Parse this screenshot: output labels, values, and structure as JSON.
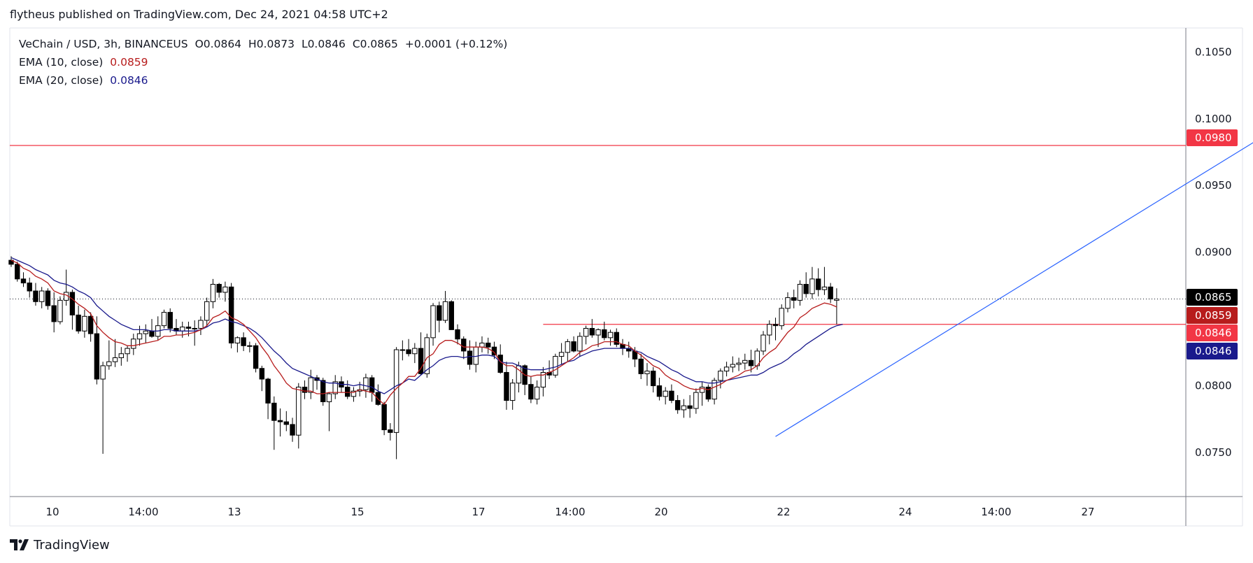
{
  "header": {
    "published_text": "flytheus published on TradingView.com, Dec 24, 2021 04:58 UTC+2"
  },
  "legend": {
    "symbol": "VeChain / USD, 3h, BINANCEUS",
    "open": "O0.0864",
    "high": "H0.0873",
    "low": "L0.0846",
    "close": "C0.0865",
    "change": "+0.0001 (+0.12%)",
    "ema10_label": "EMA (10, close)",
    "ema10_value": "0.0859",
    "ema20_label": "EMA (20, close)",
    "ema20_value": "0.0846"
  },
  "footer": {
    "brand": "TradingView"
  },
  "colors": {
    "up_body": "#ffffff",
    "down_body": "#000000",
    "ema10": "#b71c1c",
    "ema20": "#1a1a8c",
    "hline": "#f23645",
    "trendline": "#2962ff",
    "last_price_label": "#000000",
    "ema10_label_bg": "#b71c1c",
    "hline_label_bg": "#f23645",
    "ema20_label_bg": "#1a1a8c"
  },
  "chart_data": {
    "type": "candlestick",
    "timeframe": "3h",
    "y_axis": {
      "ticks": [
        "0.1050",
        "0.1000",
        "0.0950",
        "0.0900",
        "0.0800",
        "0.0750"
      ],
      "range": [
        0.0717,
        0.1068
      ]
    },
    "x_axis": {
      "tick_labels": [
        "10",
        "14:00",
        "13",
        "15",
        "17",
        "14:00",
        "20",
        "22",
        "24",
        "14:00",
        "27"
      ]
    },
    "price_labels": [
      {
        "value": "0.0980",
        "kind": "horizontal-line"
      },
      {
        "value": "0.0865",
        "kind": "last-price"
      },
      {
        "value": "0.0859",
        "kind": "ema10"
      },
      {
        "value": "0.0846",
        "kind": "horizontal-line"
      },
      {
        "value": "0.0846",
        "kind": "ema20"
      }
    ],
    "horizontal_lines": [
      {
        "price": 0.098,
        "from_bar": 0,
        "extend": "full"
      },
      {
        "price": 0.0846,
        "from_bar": 87,
        "extend": "right"
      }
    ],
    "trendline": {
      "bar1": 125,
      "price1": 0.0762,
      "bar2": 213,
      "price2": 0.101
    },
    "candles": [
      [
        0.0894,
        0.0897,
        0.0889,
        0.0891
      ],
      [
        0.0891,
        0.0893,
        0.0878,
        0.088
      ],
      [
        0.088,
        0.0885,
        0.0874,
        0.0877
      ],
      [
        0.0877,
        0.0881,
        0.0866,
        0.0871
      ],
      [
        0.0871,
        0.0877,
        0.086,
        0.0863
      ],
      [
        0.0863,
        0.0874,
        0.0858,
        0.0871
      ],
      [
        0.0871,
        0.0873,
        0.0857,
        0.086
      ],
      [
        0.086,
        0.087,
        0.084,
        0.0848
      ],
      [
        0.0848,
        0.0867,
        0.0846,
        0.0864
      ],
      [
        0.0864,
        0.0887,
        0.086,
        0.087
      ],
      [
        0.087,
        0.0872,
        0.0842,
        0.0853
      ],
      [
        0.0853,
        0.086,
        0.0839,
        0.0841
      ],
      [
        0.0841,
        0.0857,
        0.0836,
        0.0852
      ],
      [
        0.0852,
        0.0855,
        0.0833,
        0.0839
      ],
      [
        0.0839,
        0.0852,
        0.0801,
        0.0805
      ],
      [
        0.0805,
        0.0818,
        0.0749,
        0.0815
      ],
      [
        0.0815,
        0.0834,
        0.0812,
        0.0818
      ],
      [
        0.0818,
        0.0835,
        0.0814,
        0.0821
      ],
      [
        0.0821,
        0.0829,
        0.0815,
        0.0824
      ],
      [
        0.0824,
        0.083,
        0.0818,
        0.0828
      ],
      [
        0.0828,
        0.0839,
        0.0823,
        0.0835
      ],
      [
        0.0835,
        0.0845,
        0.083,
        0.0839
      ],
      [
        0.0839,
        0.0846,
        0.0832,
        0.0841
      ],
      [
        0.0841,
        0.085,
        0.0836,
        0.0837
      ],
      [
        0.0837,
        0.0852,
        0.0834,
        0.0845
      ],
      [
        0.0845,
        0.0857,
        0.0843,
        0.0855
      ],
      [
        0.0855,
        0.0858,
        0.084,
        0.0843
      ],
      [
        0.0843,
        0.085,
        0.0838,
        0.0841
      ],
      [
        0.0841,
        0.0848,
        0.0836,
        0.0844
      ],
      [
        0.0844,
        0.0848,
        0.0837,
        0.0843
      ],
      [
        0.0843,
        0.0849,
        0.083,
        0.0843
      ],
      [
        0.0843,
        0.0852,
        0.0838,
        0.0849
      ],
      [
        0.0849,
        0.0866,
        0.0844,
        0.0863
      ],
      [
        0.0863,
        0.088,
        0.0858,
        0.0876
      ],
      [
        0.0876,
        0.0877,
        0.0866,
        0.087
      ],
      [
        0.087,
        0.0878,
        0.0863,
        0.0874
      ],
      [
        0.0874,
        0.0877,
        0.0828,
        0.0832
      ],
      [
        0.0832,
        0.0837,
        0.0825,
        0.0836
      ],
      [
        0.0836,
        0.084,
        0.0826,
        0.083
      ],
      [
        0.083,
        0.0833,
        0.0825,
        0.083
      ],
      [
        0.083,
        0.0832,
        0.081,
        0.0813
      ],
      [
        0.0813,
        0.0815,
        0.0796,
        0.0805
      ],
      [
        0.0805,
        0.0806,
        0.0775,
        0.0787
      ],
      [
        0.0787,
        0.0792,
        0.0752,
        0.0774
      ],
      [
        0.0774,
        0.0783,
        0.0762,
        0.0773
      ],
      [
        0.0773,
        0.0781,
        0.0766,
        0.0771
      ],
      [
        0.0771,
        0.0776,
        0.0758,
        0.0763
      ],
      [
        0.0763,
        0.0802,
        0.0753,
        0.0799
      ],
      [
        0.0799,
        0.0804,
        0.079,
        0.0795
      ],
      [
        0.0795,
        0.0812,
        0.079,
        0.0806
      ],
      [
        0.0806,
        0.0808,
        0.0797,
        0.0804
      ],
      [
        0.0804,
        0.0806,
        0.0785,
        0.0788
      ],
      [
        0.0788,
        0.0795,
        0.0766,
        0.0794
      ],
      [
        0.0794,
        0.0808,
        0.079,
        0.0803
      ],
      [
        0.0803,
        0.0807,
        0.0795,
        0.0799
      ],
      [
        0.0799,
        0.0804,
        0.079,
        0.0792
      ],
      [
        0.0792,
        0.0799,
        0.0788,
        0.0796
      ],
      [
        0.0796,
        0.0803,
        0.0792,
        0.0797
      ],
      [
        0.0797,
        0.0809,
        0.0791,
        0.0806
      ],
      [
        0.0806,
        0.0808,
        0.0788,
        0.0795
      ],
      [
        0.0795,
        0.0801,
        0.0785,
        0.0786
      ],
      [
        0.0786,
        0.0788,
        0.0763,
        0.0767
      ],
      [
        0.0767,
        0.0772,
        0.0759,
        0.0765
      ],
      [
        0.0765,
        0.0829,
        0.0745,
        0.0827
      ],
      [
        0.0827,
        0.0834,
        0.0819,
        0.0827
      ],
      [
        0.0827,
        0.0835,
        0.0822,
        0.0824
      ],
      [
        0.0824,
        0.0832,
        0.0817,
        0.0828
      ],
      [
        0.0828,
        0.084,
        0.0808,
        0.0809
      ],
      [
        0.0809,
        0.0839,
        0.0806,
        0.0836
      ],
      [
        0.0836,
        0.0862,
        0.083,
        0.086
      ],
      [
        0.086,
        0.0863,
        0.084,
        0.0849
      ],
      [
        0.0849,
        0.0871,
        0.0847,
        0.0863
      ],
      [
        0.0863,
        0.0864,
        0.0842,
        0.0842
      ],
      [
        0.0842,
        0.0846,
        0.0831,
        0.0835
      ],
      [
        0.0835,
        0.0837,
        0.082,
        0.0826
      ],
      [
        0.0826,
        0.0834,
        0.0812,
        0.0816
      ],
      [
        0.0816,
        0.0833,
        0.081,
        0.0829
      ],
      [
        0.0829,
        0.0837,
        0.0825,
        0.0832
      ],
      [
        0.0832,
        0.0836,
        0.0824,
        0.0829
      ],
      [
        0.0829,
        0.0833,
        0.082,
        0.0823
      ],
      [
        0.0823,
        0.0831,
        0.0809,
        0.081
      ],
      [
        0.081,
        0.0818,
        0.0782,
        0.0789
      ],
      [
        0.0789,
        0.0805,
        0.0782,
        0.0802
      ],
      [
        0.0802,
        0.0818,
        0.0795,
        0.0815
      ],
      [
        0.0815,
        0.0816,
        0.0793,
        0.0801
      ],
      [
        0.0801,
        0.0807,
        0.0787,
        0.079
      ],
      [
        0.079,
        0.0804,
        0.0786,
        0.0799
      ],
      [
        0.0799,
        0.0814,
        0.0792,
        0.081
      ],
      [
        0.081,
        0.0819,
        0.0805,
        0.0808
      ],
      [
        0.0808,
        0.0824,
        0.0806,
        0.0822
      ],
      [
        0.0822,
        0.0832,
        0.0816,
        0.0825
      ],
      [
        0.0825,
        0.0835,
        0.0818,
        0.0833
      ],
      [
        0.0833,
        0.0837,
        0.0825,
        0.0826
      ],
      [
        0.0826,
        0.084,
        0.0822,
        0.0837
      ],
      [
        0.0837,
        0.0845,
        0.0831,
        0.0843
      ],
      [
        0.0843,
        0.085,
        0.0836,
        0.0838
      ],
      [
        0.0838,
        0.0843,
        0.0829,
        0.0842
      ],
      [
        0.0842,
        0.0848,
        0.0834,
        0.0836
      ],
      [
        0.0836,
        0.0842,
        0.083,
        0.084
      ],
      [
        0.084,
        0.0843,
        0.0829,
        0.0831
      ],
      [
        0.0831,
        0.0835,
        0.0823,
        0.0828
      ],
      [
        0.0828,
        0.0833,
        0.0821,
        0.0826
      ],
      [
        0.0826,
        0.0829,
        0.0814,
        0.082
      ],
      [
        0.082,
        0.0824,
        0.0805,
        0.0809
      ],
      [
        0.0809,
        0.0817,
        0.08,
        0.0811
      ],
      [
        0.0811,
        0.0814,
        0.0795,
        0.08
      ],
      [
        0.08,
        0.0806,
        0.0789,
        0.0792
      ],
      [
        0.0792,
        0.0799,
        0.0786,
        0.0796
      ],
      [
        0.0796,
        0.0801,
        0.0787,
        0.0789
      ],
      [
        0.0789,
        0.0793,
        0.0779,
        0.0782
      ],
      [
        0.0782,
        0.079,
        0.0776,
        0.0785
      ],
      [
        0.0785,
        0.0793,
        0.0776,
        0.0783
      ],
      [
        0.0783,
        0.0798,
        0.0779,
        0.0795
      ],
      [
        0.0795,
        0.0803,
        0.0785,
        0.0799
      ],
      [
        0.0799,
        0.0801,
        0.0788,
        0.079
      ],
      [
        0.079,
        0.0806,
        0.0786,
        0.0804
      ],
      [
        0.0804,
        0.0813,
        0.0798,
        0.0811
      ],
      [
        0.0811,
        0.0818,
        0.0807,
        0.0814
      ],
      [
        0.0814,
        0.0822,
        0.081,
        0.0816
      ],
      [
        0.0816,
        0.0821,
        0.0811,
        0.0817
      ],
      [
        0.0817,
        0.0824,
        0.0812,
        0.0819
      ],
      [
        0.0819,
        0.0827,
        0.081,
        0.0815
      ],
      [
        0.0815,
        0.0828,
        0.0812,
        0.0826
      ],
      [
        0.0826,
        0.0841,
        0.0823,
        0.0838
      ],
      [
        0.0838,
        0.0849,
        0.0831,
        0.0846
      ],
      [
        0.0846,
        0.0851,
        0.0834,
        0.0845
      ],
      [
        0.0845,
        0.0861,
        0.0842,
        0.0858
      ],
      [
        0.0858,
        0.087,
        0.0855,
        0.0866
      ],
      [
        0.0866,
        0.0872,
        0.0858,
        0.0864
      ],
      [
        0.0864,
        0.0879,
        0.086,
        0.0876
      ],
      [
        0.0876,
        0.0885,
        0.0866,
        0.0869
      ],
      [
        0.0869,
        0.0889,
        0.0865,
        0.088
      ],
      [
        0.088,
        0.0888,
        0.0867,
        0.0872
      ],
      [
        0.0872,
        0.0889,
        0.0868,
        0.0874
      ],
      [
        0.0874,
        0.0877,
        0.0862,
        0.0865
      ],
      [
        0.0864,
        0.0873,
        0.0846,
        0.0865
      ]
    ],
    "ema10": [
      0.0894,
      0.0892,
      0.0888,
      0.0886,
      0.0882,
      0.088,
      0.0877,
      0.0871,
      0.0869,
      0.0868,
      0.0865,
      0.0861,
      0.0858,
      0.0854,
      0.0845,
      0.084,
      0.0836,
      0.0833,
      0.0832,
      0.083,
      0.083,
      0.0831,
      0.0832,
      0.0833,
      0.0834,
      0.0837,
      0.0837,
      0.0838,
      0.0838,
      0.0839,
      0.084,
      0.0842,
      0.0845,
      0.0851,
      0.0853,
      0.0856,
      0.0851,
      0.0849,
      0.0846,
      0.0841,
      0.0836,
      0.0829,
      0.0823,
      0.0815,
      0.0809,
      0.0802,
      0.0798,
      0.0797,
      0.0796,
      0.0796,
      0.0794,
      0.0794,
      0.0795,
      0.0795,
      0.0795,
      0.0795,
      0.0795,
      0.0797,
      0.0796,
      0.0795,
      0.079,
      0.0786,
      0.0793,
      0.0798,
      0.0802,
      0.0807,
      0.0807,
      0.0813,
      0.0821,
      0.0824,
      0.0831,
      0.0834,
      0.0834,
      0.0832,
      0.0829,
      0.0829,
      0.0829,
      0.0829,
      0.0828,
      0.0825,
      0.0818,
      0.0815,
      0.0815,
      0.0812,
      0.0808,
      0.0807,
      0.0808,
      0.0808,
      0.081,
      0.0812,
      0.0815,
      0.0818,
      0.0821,
      0.0825,
      0.0827,
      0.083,
      0.0831,
      0.0833,
      0.0833,
      0.0833,
      0.0831,
      0.083,
      0.0826,
      0.0823,
      0.0819,
      0.0815,
      0.0813,
      0.0808,
      0.0805,
      0.0803,
      0.08,
      0.0798,
      0.0797,
      0.0798,
      0.0797,
      0.0799,
      0.0801,
      0.0804,
      0.0806,
      0.0808,
      0.0811,
      0.0812,
      0.0815,
      0.0821,
      0.0825,
      0.0828,
      0.0834,
      0.084,
      0.0844,
      0.0851,
      0.0854,
      0.0858,
      0.086,
      0.0862,
      0.0861,
      0.0859
    ],
    "ema20": [
      0.0896,
      0.0894,
      0.0892,
      0.089,
      0.0887,
      0.0885,
      0.0883,
      0.0879,
      0.0877,
      0.0876,
      0.0874,
      0.0871,
      0.0869,
      0.0866,
      0.086,
      0.0856,
      0.0852,
      0.0849,
      0.0846,
      0.0844,
      0.0842,
      0.0842,
      0.0842,
      0.0841,
      0.0841,
      0.0842,
      0.0842,
      0.0841,
      0.0841,
      0.0841,
      0.0841,
      0.0842,
      0.0844,
      0.0847,
      0.0848,
      0.085,
      0.0848,
      0.0847,
      0.0845,
      0.0843,
      0.084,
      0.0836,
      0.0831,
      0.0826,
      0.0822,
      0.0817,
      0.0813,
      0.0811,
      0.0809,
      0.0807,
      0.0805,
      0.0803,
      0.0802,
      0.0802,
      0.0801,
      0.0801,
      0.08,
      0.0801,
      0.08,
      0.0799,
      0.0796,
      0.0794,
      0.0797,
      0.08,
      0.0802,
      0.0805,
      0.0804,
      0.0808,
      0.0812,
      0.0815,
      0.0819,
      0.0821,
      0.0822,
      0.0822,
      0.0821,
      0.0822,
      0.0822,
      0.0823,
      0.0823,
      0.0822,
      0.0818,
      0.0817,
      0.0817,
      0.0815,
      0.0813,
      0.0812,
      0.0812,
      0.0812,
      0.0813,
      0.0814,
      0.0816,
      0.0818,
      0.0819,
      0.0822,
      0.0824,
      0.0826,
      0.0827,
      0.0828,
      0.0828,
      0.0828,
      0.0828,
      0.0828,
      0.0826,
      0.0825,
      0.0822,
      0.082,
      0.0818,
      0.0815,
      0.0812,
      0.081,
      0.0807,
      0.0805,
      0.0803,
      0.0803,
      0.0802,
      0.0802,
      0.0803,
      0.0804,
      0.0805,
      0.0806,
      0.0807,
      0.0808,
      0.0808,
      0.081,
      0.0813,
      0.0815,
      0.0817,
      0.082,
      0.0824,
      0.0827,
      0.0831,
      0.0834,
      0.0837,
      0.084,
      0.0843,
      0.0845,
      0.0846
    ]
  }
}
